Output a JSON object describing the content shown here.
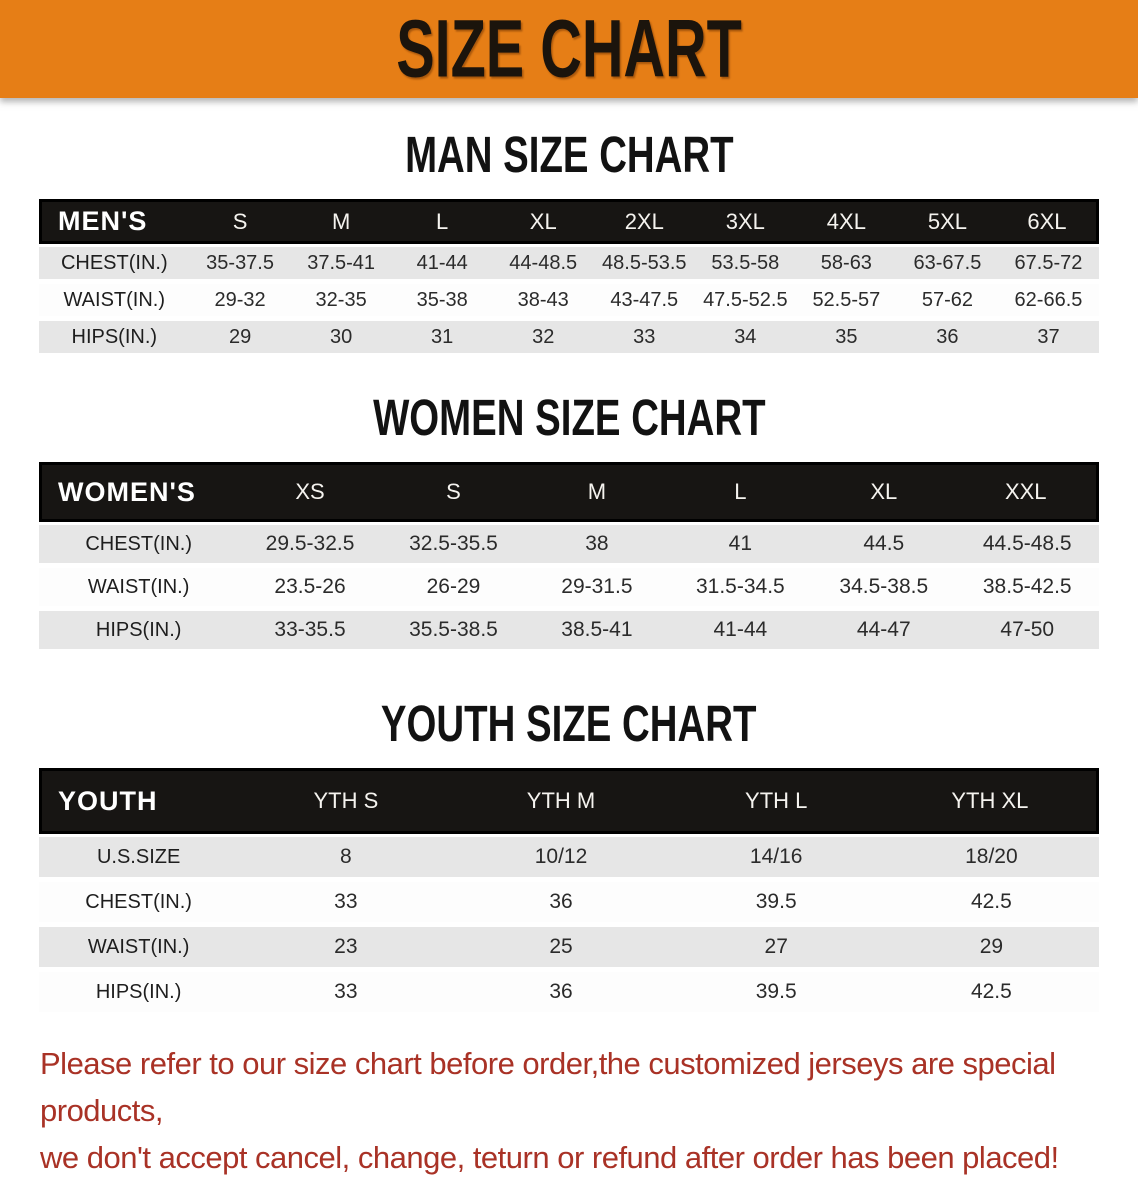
{
  "banner": {
    "title": "SIZE CHART",
    "bg_color": "#E67E16",
    "text_color": "#1B140C"
  },
  "tables": {
    "men": {
      "title": "MAN SIZE CHART",
      "header_label": "MEN'S",
      "columns": [
        "S",
        "M",
        "L",
        "XL",
        "2XL",
        "3XL",
        "4XL",
        "5XL",
        "6XL"
      ],
      "rows": [
        {
          "label": "CHEST(IN.)",
          "values": [
            "35-37.5",
            "37.5-41",
            "41-44",
            "44-48.5",
            "48.5-53.5",
            "53.5-58",
            "58-63",
            "63-67.5",
            "67.5-72"
          ]
        },
        {
          "label": "WAIST(IN.)",
          "values": [
            "29-32",
            "32-35",
            "35-38",
            "38-43",
            "43-47.5",
            "47.5-52.5",
            "52.5-57",
            "57-62",
            "62-66.5"
          ]
        },
        {
          "label": "HIPS(IN.)",
          "values": [
            "29",
            "30",
            "31",
            "32",
            "33",
            "34",
            "35",
            "36",
            "37"
          ]
        }
      ]
    },
    "women": {
      "title": "WOMEN SIZE CHART",
      "header_label": "WOMEN'S",
      "columns": [
        "XS",
        "S",
        "M",
        "L",
        "XL",
        "XXL"
      ],
      "rows": [
        {
          "label": "CHEST(IN.)",
          "values": [
            "29.5-32.5",
            "32.5-35.5",
            "38",
            "41",
            "44.5",
            "44.5-48.5"
          ]
        },
        {
          "label": "WAIST(IN.)",
          "values": [
            "23.5-26",
            "26-29",
            "29-31.5",
            "31.5-34.5",
            "34.5-38.5",
            "38.5-42.5"
          ]
        },
        {
          "label": "HIPS(IN.)",
          "values": [
            "33-35.5",
            "35.5-38.5",
            "38.5-41",
            "41-44",
            "44-47",
            "47-50"
          ]
        }
      ]
    },
    "youth": {
      "title": "YOUTH SIZE CHART",
      "header_label": "YOUTH",
      "columns": [
        "YTH S",
        "YTH M",
        "YTH L",
        "YTH XL"
      ],
      "rows": [
        {
          "label": "U.S.SIZE",
          "values": [
            "8",
            "10/12",
            "14/16",
            "18/20"
          ]
        },
        {
          "label": "CHEST(IN.)",
          "values": [
            "33",
            "36",
            "39.5",
            "42.5"
          ]
        },
        {
          "label": "WAIST(IN.)",
          "values": [
            "23",
            "25",
            "27",
            "29"
          ]
        },
        {
          "label": "HIPS(IN.)",
          "values": [
            "33",
            "36",
            "39.5",
            "42.5"
          ]
        }
      ]
    }
  },
  "disclaimer": {
    "line1": "Please refer to our size chart before order,the customized jerseys are special products,",
    "line2": "we don't accept cancel, change, teturn or refund after order has been placed!",
    "color": "#A93226"
  },
  "colors": {
    "banner_orange": "#E67E16",
    "header_bar_black": "#171513",
    "stripe_gray": "#E6E6E6",
    "stripe_white": "#FDFDFD",
    "disclaimer_red": "#A93226"
  }
}
